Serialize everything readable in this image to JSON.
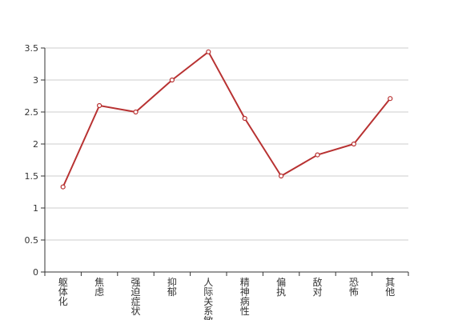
{
  "chart_data": {
    "type": "line",
    "title": "",
    "xlabel": "",
    "ylabel": "",
    "categories": [
      "躯体化",
      "焦虑",
      "强迫症状",
      "抑郁",
      "人际关系敏感",
      "精神病性",
      "偏执",
      "敌对",
      "恐怖",
      "其他"
    ],
    "series": [
      {
        "values": [
          1.33,
          2.6,
          2.5,
          3.0,
          3.44,
          2.4,
          1.5,
          1.83,
          2.0,
          2.71
        ]
      }
    ],
    "ylim": [
      0,
      3.5
    ],
    "yticks": [
      0,
      0.5,
      1,
      1.5,
      2,
      2.5,
      3,
      3.5
    ],
    "ytick_labels": [
      "0",
      "0.5",
      "1",
      "1.5",
      "2",
      "2.5",
      "3",
      "3.5"
    ],
    "grid": true,
    "legend": "none",
    "colors": {
      "line": "#b83232",
      "point_fill": "#ffffff",
      "grid": "#cccccc",
      "axis": "#333333"
    }
  }
}
